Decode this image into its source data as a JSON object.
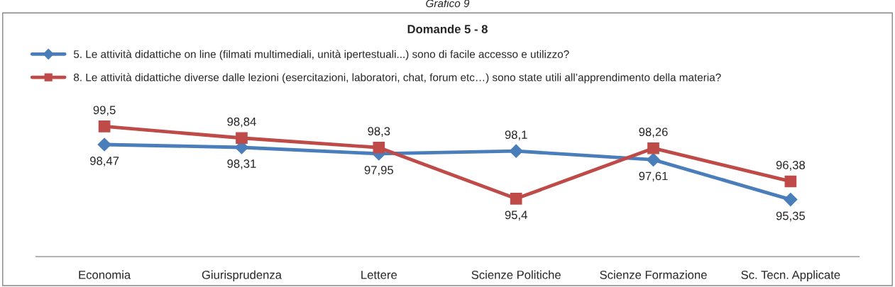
{
  "chart_data": {
    "type": "line",
    "title": "Domande 5 - 8",
    "annotations": [
      "Grafico 9"
    ],
    "categories": [
      "Economia",
      "Giurisprudenza",
      "Lettere",
      "Scienze Politiche",
      "Scienze Formazione",
      "Sc. Tecn. Applicate"
    ],
    "series": [
      {
        "name": "5. Le attività didattiche on line (filmati multimediali, unità ipertestuali...) sono di facile accesso e utilizzo?",
        "color": "#4a7ebb",
        "marker": "diamond",
        "values": [
          98.47,
          98.31,
          97.95,
          98.1,
          97.61,
          95.35
        ],
        "value_labels": [
          "98,47",
          "98,31",
          "97,95",
          "98,1",
          "97,61",
          "95,35"
        ]
      },
      {
        "name": "8. Le attività didattiche diverse dalle lezioni (esercitazioni, laboratori, chat, forum etc…) sono state utili all’apprendimento della materia?",
        "color": "#be4b48",
        "marker": "square",
        "values": [
          99.5,
          98.84,
          98.3,
          95.4,
          98.26,
          96.38
        ],
        "value_labels": [
          "99,5",
          "98,84",
          "98,3",
          "95,4",
          "98,26",
          "96,38"
        ]
      }
    ],
    "tick_labels": "x",
    "legend": "top left",
    "grid": false,
    "line_style": "solid"
  }
}
